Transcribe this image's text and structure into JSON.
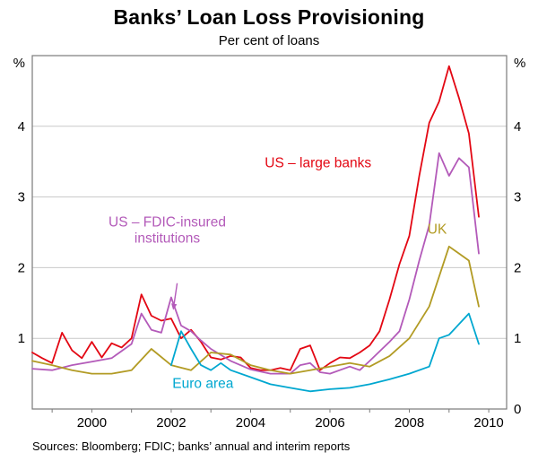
{
  "footer": "Sources: Bloomberg; FDIC; banks’ annual and interim reports",
  "chart_data": {
    "type": "line",
    "title": "Banks’ Loan Loss Provisioning",
    "subtitle": "Per cent of loans",
    "unit": "%",
    "xlim": [
      1998.5,
      2010.45
    ],
    "ylim": [
      0,
      5
    ],
    "grid": "horizontal",
    "legend_position": "inline-labels",
    "x_ticks": [
      2000,
      2002,
      2004,
      2006,
      2008,
      2010
    ],
    "x_minor_ticks": [
      1999,
      2000,
      2001,
      2002,
      2003,
      2004,
      2005,
      2006,
      2007,
      2008,
      2009,
      2010
    ],
    "y_gridlines": [
      1,
      2,
      3,
      4
    ],
    "y_ticks_left": [
      4,
      3,
      2,
      1
    ],
    "y_ticks_right": [
      4,
      3,
      2,
      1,
      0
    ],
    "series": [
      {
        "name": "US – large banks",
        "color": "#e30713",
        "points": [
          [
            1998.5,
            0.8
          ],
          [
            1998.75,
            0.72
          ],
          [
            1999.0,
            0.65
          ],
          [
            1999.25,
            1.08
          ],
          [
            1999.5,
            0.83
          ],
          [
            1999.75,
            0.72
          ],
          [
            2000.0,
            0.95
          ],
          [
            2000.25,
            0.73
          ],
          [
            2000.5,
            0.93
          ],
          [
            2000.75,
            0.87
          ],
          [
            2001.0,
            1.0
          ],
          [
            2001.25,
            1.62
          ],
          [
            2001.5,
            1.32
          ],
          [
            2001.75,
            1.25
          ],
          [
            2002.0,
            1.28
          ],
          [
            2002.25,
            1.0
          ],
          [
            2002.5,
            1.12
          ],
          [
            2002.75,
            0.95
          ],
          [
            2003.0,
            0.73
          ],
          [
            2003.25,
            0.7
          ],
          [
            2003.5,
            0.75
          ],
          [
            2003.75,
            0.73
          ],
          [
            2004.0,
            0.58
          ],
          [
            2004.25,
            0.55
          ],
          [
            2004.5,
            0.55
          ],
          [
            2004.75,
            0.58
          ],
          [
            2005.0,
            0.55
          ],
          [
            2005.25,
            0.85
          ],
          [
            2005.5,
            0.9
          ],
          [
            2005.75,
            0.55
          ],
          [
            2006.0,
            0.65
          ],
          [
            2006.25,
            0.73
          ],
          [
            2006.5,
            0.72
          ],
          [
            2006.75,
            0.8
          ],
          [
            2007.0,
            0.9
          ],
          [
            2007.25,
            1.1
          ],
          [
            2007.5,
            1.55
          ],
          [
            2007.75,
            2.05
          ],
          [
            2008.0,
            2.45
          ],
          [
            2008.25,
            3.3
          ],
          [
            2008.5,
            4.05
          ],
          [
            2008.75,
            4.35
          ],
          [
            2009.0,
            4.85
          ],
          [
            2009.25,
            4.4
          ],
          [
            2009.5,
            3.9
          ],
          [
            2009.75,
            2.72
          ]
        ]
      },
      {
        "name": "US – FDIC-insured institutions",
        "color": "#b35ab9",
        "points": [
          [
            1998.5,
            0.57
          ],
          [
            1999.0,
            0.55
          ],
          [
            1999.5,
            0.62
          ],
          [
            2000.0,
            0.67
          ],
          [
            2000.5,
            0.72
          ],
          [
            2001.0,
            0.92
          ],
          [
            2001.25,
            1.35
          ],
          [
            2001.5,
            1.12
          ],
          [
            2001.75,
            1.08
          ],
          [
            2002.0,
            1.58
          ],
          [
            2002.25,
            1.18
          ],
          [
            2002.5,
            1.1
          ],
          [
            2002.75,
            0.97
          ],
          [
            2003.0,
            0.85
          ],
          [
            2003.5,
            0.68
          ],
          [
            2004.0,
            0.56
          ],
          [
            2004.5,
            0.5
          ],
          [
            2005.0,
            0.5
          ],
          [
            2005.25,
            0.62
          ],
          [
            2005.5,
            0.65
          ],
          [
            2005.75,
            0.52
          ],
          [
            2006.0,
            0.5
          ],
          [
            2006.5,
            0.6
          ],
          [
            2006.75,
            0.55
          ],
          [
            2007.0,
            0.68
          ],
          [
            2007.5,
            0.95
          ],
          [
            2007.75,
            1.1
          ],
          [
            2008.0,
            1.55
          ],
          [
            2008.25,
            2.1
          ],
          [
            2008.5,
            2.6
          ],
          [
            2008.75,
            3.62
          ],
          [
            2009.0,
            3.3
          ],
          [
            2009.25,
            3.55
          ],
          [
            2009.5,
            3.42
          ],
          [
            2009.75,
            2.2
          ]
        ]
      },
      {
        "name": "UK",
        "color": "#b29b24",
        "points": [
          [
            1998.5,
            0.68
          ],
          [
            1999.0,
            0.62
          ],
          [
            1999.5,
            0.55
          ],
          [
            2000.0,
            0.5
          ],
          [
            2000.5,
            0.5
          ],
          [
            2001.0,
            0.55
          ],
          [
            2001.5,
            0.85
          ],
          [
            2002.0,
            0.62
          ],
          [
            2002.5,
            0.55
          ],
          [
            2003.0,
            0.8
          ],
          [
            2003.5,
            0.77
          ],
          [
            2004.0,
            0.62
          ],
          [
            2004.5,
            0.55
          ],
          [
            2005.0,
            0.5
          ],
          [
            2005.5,
            0.55
          ],
          [
            2006.0,
            0.6
          ],
          [
            2006.5,
            0.65
          ],
          [
            2007.0,
            0.6
          ],
          [
            2007.5,
            0.75
          ],
          [
            2008.0,
            1.0
          ],
          [
            2008.5,
            1.45
          ],
          [
            2009.0,
            2.3
          ],
          [
            2009.5,
            2.1
          ],
          [
            2009.75,
            1.45
          ]
        ]
      },
      {
        "name": "Euro area",
        "color": "#00a7d0",
        "points": [
          [
            2002.0,
            0.62
          ],
          [
            2002.25,
            1.1
          ],
          [
            2002.5,
            0.85
          ],
          [
            2002.75,
            0.62
          ],
          [
            2003.0,
            0.55
          ],
          [
            2003.25,
            0.65
          ],
          [
            2003.5,
            0.55
          ],
          [
            2004.0,
            0.45
          ],
          [
            2004.5,
            0.35
          ],
          [
            2005.0,
            0.3
          ],
          [
            2005.5,
            0.25
          ],
          [
            2006.0,
            0.28
          ],
          [
            2006.5,
            0.3
          ],
          [
            2007.0,
            0.35
          ],
          [
            2007.5,
            0.42
          ],
          [
            2008.0,
            0.5
          ],
          [
            2008.5,
            0.6
          ],
          [
            2008.75,
            1.0
          ],
          [
            2009.0,
            1.05
          ],
          [
            2009.25,
            1.2
          ],
          [
            2009.5,
            1.35
          ],
          [
            2009.75,
            0.92
          ]
        ]
      }
    ],
    "annotations": [
      {
        "text": "US – large banks",
        "x": 2005.7,
        "y": 3.42,
        "color": "#e30713"
      },
      {
        "text": "US – FDIC-insured\ninstitutions",
        "x": 2001.9,
        "y": 2.58,
        "color": "#b35ab9",
        "arrow_from": [
          2002.15,
          1.78
        ],
        "arrow_to": [
          2002.05,
          1.4
        ]
      },
      {
        "text": "UK",
        "x": 2008.7,
        "y": 2.48,
        "color": "#b29b24"
      },
      {
        "text": "Euro area",
        "x": 2002.8,
        "y": 0.3,
        "color": "#00a7d0"
      }
    ]
  }
}
